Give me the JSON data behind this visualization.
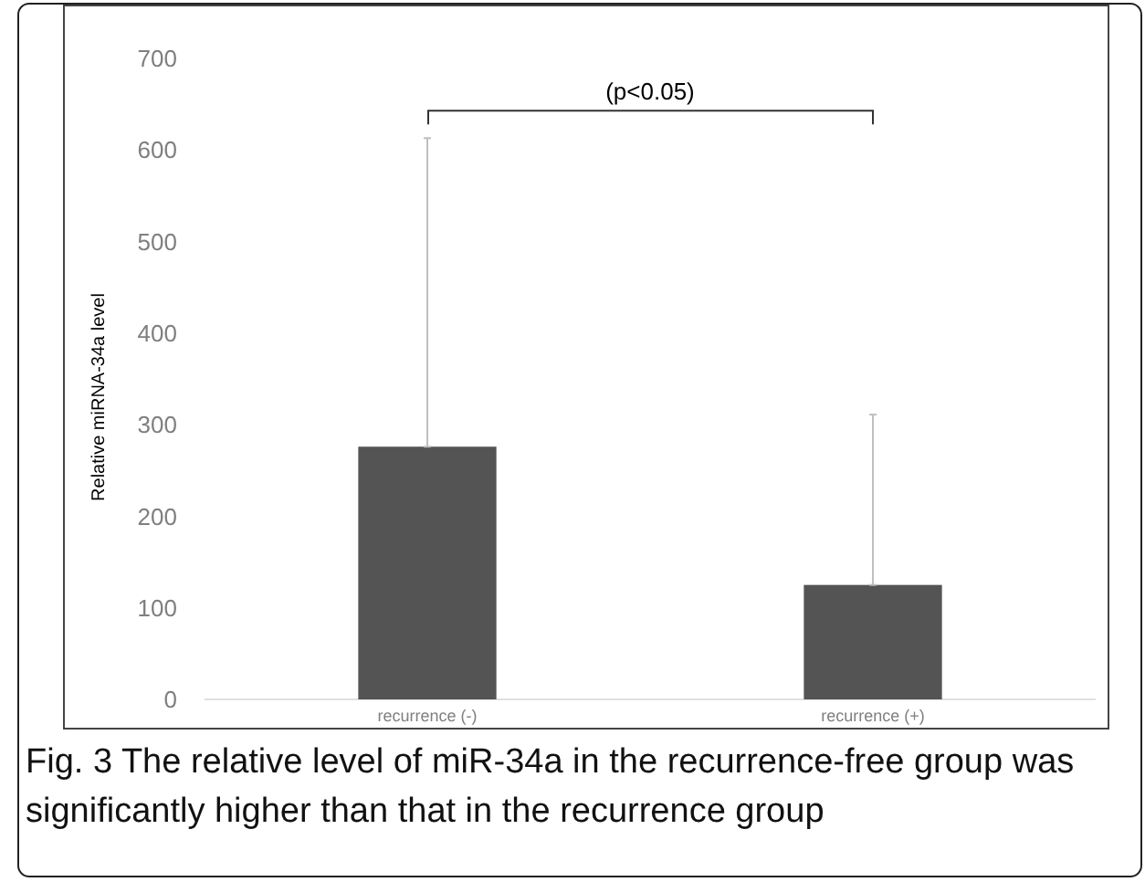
{
  "chart_data": {
    "type": "bar",
    "ylabel": "Relative miRNA-34a level",
    "categories": [
      "recurrence (-)",
      "recurrence (+)"
    ],
    "values": [
      276,
      125
    ],
    "color": "#545454",
    "errors": [
      [
        276,
        613
      ],
      [
        125,
        311
      ]
    ],
    "ylim": [
      0,
      700
    ],
    "yticks": [
      0,
      100,
      200,
      300,
      400,
      500,
      600,
      700
    ],
    "grid": false,
    "annotations": [
      "(p<0.05)",
      "Fig. 3 The relative level of miR-34a in the recurrence-free group was significantly higher than that in the recurrence group"
    ]
  }
}
